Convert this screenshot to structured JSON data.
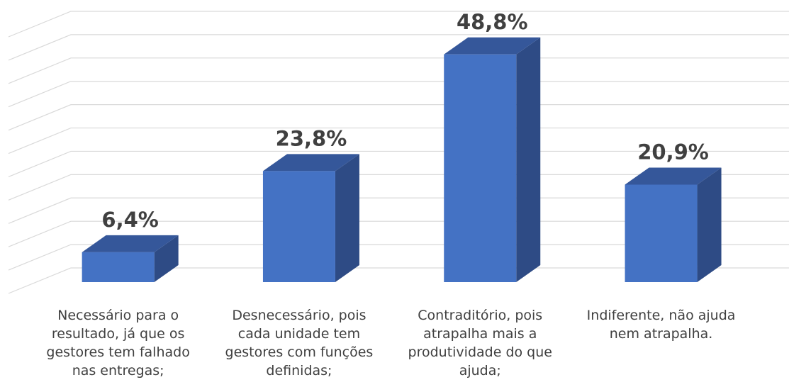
{
  "chart_data": {
    "type": "bar3d",
    "categories": [
      "Necessário para o resultado, já que os gestores tem falhado nas entregas;",
      "Desnecessário, pois cada unidade tem gestores com funções definidas;",
      "Contraditório, pois atrapalha mais a produtividade do que ajuda;",
      "Indiferente, não ajuda nem atrapalha."
    ],
    "values": [
      6.4,
      23.8,
      48.8,
      20.9
    ],
    "value_labels": [
      "6,4%",
      "23,8%",
      "48,8%",
      "20,9%"
    ],
    "color": "#4472c4",
    "ylim": [
      0,
      55
    ],
    "yticks": [
      0,
      5,
      10,
      15,
      20,
      25,
      30,
      35,
      40,
      45,
      50,
      55
    ],
    "grid": true
  }
}
